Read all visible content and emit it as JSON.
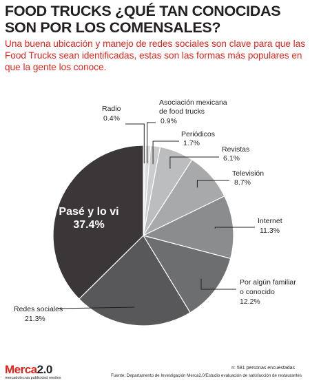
{
  "header": {
    "title": "FOOD TRUCKS ¿QUÉ TAN CONOCIDAS SON POR LOS COMENSALES?",
    "subtitle": "Una buena ubicación y manejo de redes sociales son clave para que las Food Trucks sean identificadas, estas son las formas más populares en que la gente los conoce."
  },
  "chart_data": {
    "type": "pie",
    "title": "",
    "slices": [
      {
        "label": "Radio",
        "value": 0.4,
        "display": "0.4%",
        "color": "#e6e7e8"
      },
      {
        "label": "Asociación mexicana de food trucks",
        "value": 0.9,
        "display": "0.9%",
        "color": "#d9dadb"
      },
      {
        "label": "Periódicos",
        "value": 1.7,
        "display": "1.7%",
        "color": "#cbcccd"
      },
      {
        "label": "Revistas",
        "value": 6.1,
        "display": "6.1%",
        "color": "#bcbdbf"
      },
      {
        "label": "Televisión",
        "value": 8.7,
        "display": "8.7%",
        "color": "#a7a9ab"
      },
      {
        "label": "Internet",
        "value": 11.3,
        "display": "11.3%",
        "color": "#8a8c8e"
      },
      {
        "label": "Por algún familiar o conocido",
        "value": 12.2,
        "display": "12.2%",
        "color": "#6d6e70"
      },
      {
        "label": "Redes sociales",
        "value": 21.3,
        "display": "21.3%",
        "color": "#58585a"
      },
      {
        "label": "Pasé y lo vi",
        "value": 37.4,
        "display": "37.4%",
        "color": "#3b3739"
      }
    ]
  },
  "footer": {
    "sample": "n: 581 personas encuestadas",
    "source": "Fuente: Departamento de Investigación Merca2.0/Estudio evaluación de satisfacción de restaurantes"
  },
  "logo": {
    "brand": "Merca",
    "version": "2.0",
    "tagline": "mercadotecnia publicidad medios"
  }
}
